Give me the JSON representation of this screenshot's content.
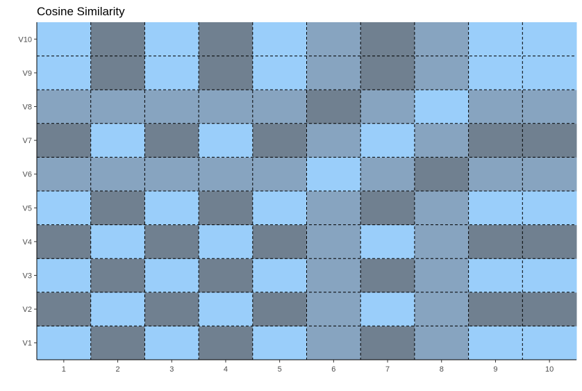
{
  "chart_data": {
    "type": "heatmap",
    "title": "Cosine Similarity",
    "xlabel": "",
    "ylabel": "",
    "x_categories": [
      "1",
      "2",
      "3",
      "4",
      "5",
      "6",
      "7",
      "8",
      "9",
      "10"
    ],
    "y_categories": [
      "V1",
      "V2",
      "V3",
      "V4",
      "V5",
      "V6",
      "V7",
      "V8",
      "V9",
      "V10"
    ],
    "values": [
      [
        1,
        -1,
        1,
        -1,
        1,
        0,
        -1,
        0,
        1,
        1
      ],
      [
        -1,
        1,
        -1,
        1,
        -1,
        0,
        1,
        0,
        -1,
        -1
      ],
      [
        1,
        -1,
        1,
        -1,
        1,
        0,
        -1,
        0,
        1,
        1
      ],
      [
        -1,
        1,
        -1,
        1,
        -1,
        0,
        1,
        0,
        -1,
        -1
      ],
      [
        1,
        -1,
        1,
        -1,
        1,
        0,
        -1,
        0,
        1,
        1
      ],
      [
        0,
        0,
        0,
        0,
        0,
        1,
        0,
        -1,
        0,
        0
      ],
      [
        -1,
        1,
        -1,
        1,
        -1,
        0,
        1,
        0,
        -1,
        -1
      ],
      [
        0,
        0,
        0,
        0,
        0,
        -1,
        0,
        1,
        0,
        0
      ],
      [
        1,
        -1,
        1,
        -1,
        1,
        0,
        -1,
        0,
        1,
        1
      ],
      [
        1,
        -1,
        1,
        -1,
        1,
        0,
        -1,
        0,
        1,
        1
      ]
    ],
    "value_range": [
      -1,
      1
    ],
    "color_scale": {
      "low": "#708090",
      "mid": "#87a4c0",
      "high": "#9acefa"
    },
    "grid": true,
    "grid_style": "dashed",
    "legend": "none"
  }
}
